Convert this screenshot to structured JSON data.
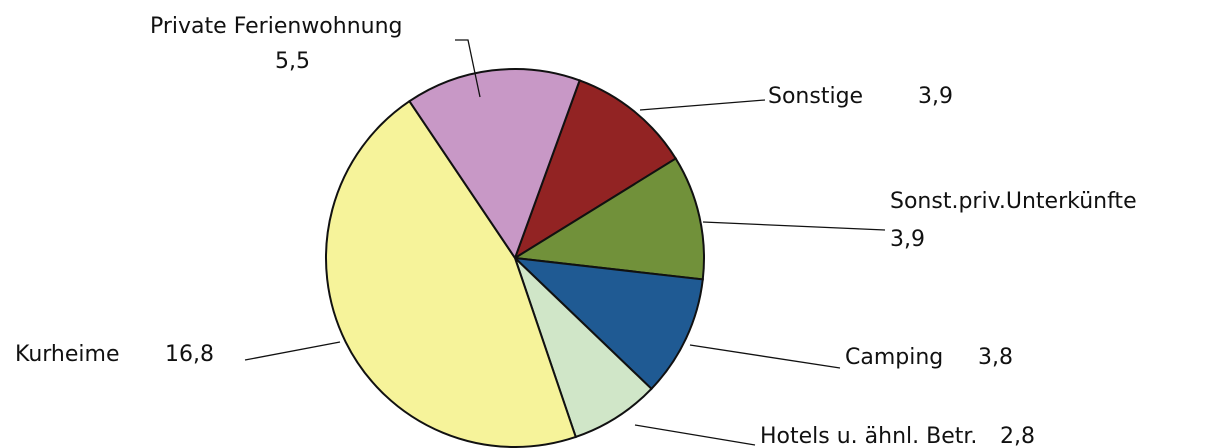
{
  "chart_data": {
    "type": "pie",
    "categories": [
      "Sonstige",
      "Sonst.priv.Unterkünfte",
      "Camping",
      "Hotels u. ähnl. Betr.",
      "Kurheime",
      "Private Ferienwohnung"
    ],
    "values": [
      3.9,
      3.9,
      3.8,
      2.8,
      16.8,
      5.5
    ],
    "value_labels": [
      "3,9",
      "3,9",
      "3,8",
      "2,8",
      "16,8",
      "5,5"
    ],
    "colors": [
      "#922323",
      "#71913a",
      "#1f5a93",
      "#d0e6c8",
      "#f6f39a",
      "#c898c6"
    ]
  }
}
